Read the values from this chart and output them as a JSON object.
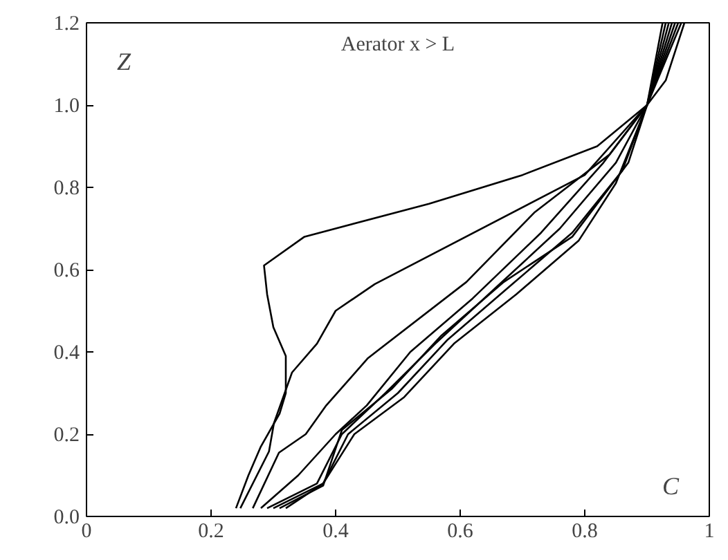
{
  "chart_data": {
    "type": "line",
    "title": "Aerator x > L",
    "annotations": [
      "Z",
      "C"
    ],
    "xlim": [
      0,
      1
    ],
    "ylim": [
      0,
      1.2
    ],
    "xticks": [
      0,
      0.2,
      0.4,
      0.6,
      0.8,
      1
    ],
    "yticks": [
      {
        "value": 0,
        "label": "0.0"
      },
      0.2,
      0.4,
      0.6,
      0.8,
      {
        "value": 1,
        "label": "1.0"
      },
      1.2
    ],
    "grid": false,
    "marker": "none",
    "line_style": "solid",
    "series": [
      {
        "color": "#000000",
        "x": [
          0.24,
          0.26,
          0.28,
          0.31,
          0.32,
          0.32,
          0.3,
          0.29,
          0.285,
          0.35,
          0.55,
          0.7,
          0.82,
          0.9,
          0.93,
          0.96
        ],
        "values": [
          0.02,
          0.1,
          0.17,
          0.25,
          0.3,
          0.39,
          0.46,
          0.54,
          0.61,
          0.68,
          0.76,
          0.83,
          0.9,
          1.0,
          1.06,
          1.2
        ]
      },
      {
        "color": "#000000",
        "x": [
          0.247,
          0.293,
          0.301,
          0.33,
          0.37,
          0.4,
          0.463,
          0.8,
          0.9,
          0.95
        ],
        "values": [
          0.02,
          0.158,
          0.227,
          0.35,
          0.42,
          0.5,
          0.565,
          0.83,
          1.0,
          1.2
        ]
      },
      {
        "color": "#000000",
        "x": [
          0.267,
          0.309,
          0.352,
          0.385,
          0.452,
          0.61,
          0.72,
          0.84,
          0.9,
          0.955
        ],
        "values": [
          0.02,
          0.155,
          0.2,
          0.27,
          0.385,
          0.57,
          0.74,
          0.88,
          1.0,
          1.2
        ]
      },
      {
        "color": "#000000",
        "x": [
          0.28,
          0.34,
          0.4,
          0.45,
          0.52,
          0.62,
          0.73,
          0.83,
          0.9,
          0.945
        ],
        "values": [
          0.02,
          0.1,
          0.2,
          0.27,
          0.4,
          0.53,
          0.69,
          0.86,
          1.0,
          1.2
        ]
      },
      {
        "color": "#000000",
        "x": [
          0.29,
          0.37,
          0.41,
          0.48,
          0.56,
          0.66,
          0.76,
          0.85,
          0.9,
          0.94
        ],
        "values": [
          0.02,
          0.08,
          0.2,
          0.3,
          0.42,
          0.56,
          0.7,
          0.86,
          1.0,
          1.2
        ]
      },
      {
        "color": "#000000",
        "x": [
          0.3,
          0.38,
          0.42,
          0.5,
          0.58,
          0.68,
          0.78,
          0.86,
          0.9,
          0.935
        ],
        "values": [
          0.02,
          0.08,
          0.2,
          0.3,
          0.43,
          0.56,
          0.69,
          0.84,
          1.0,
          1.2
        ]
      },
      {
        "color": "#000000",
        "x": [
          0.31,
          0.38,
          0.41,
          0.49,
          0.57,
          0.67,
          0.78,
          0.87,
          0.9,
          0.93
        ],
        "values": [
          0.02,
          0.075,
          0.21,
          0.31,
          0.44,
          0.57,
          0.68,
          0.86,
          1.0,
          1.2
        ]
      },
      {
        "color": "#000000",
        "x": [
          0.32,
          0.38,
          0.43,
          0.51,
          0.59,
          0.69,
          0.79,
          0.85,
          0.9,
          0.925
        ],
        "values": [
          0.02,
          0.08,
          0.2,
          0.29,
          0.42,
          0.54,
          0.67,
          0.81,
          1.0,
          1.2
        ]
      }
    ]
  }
}
